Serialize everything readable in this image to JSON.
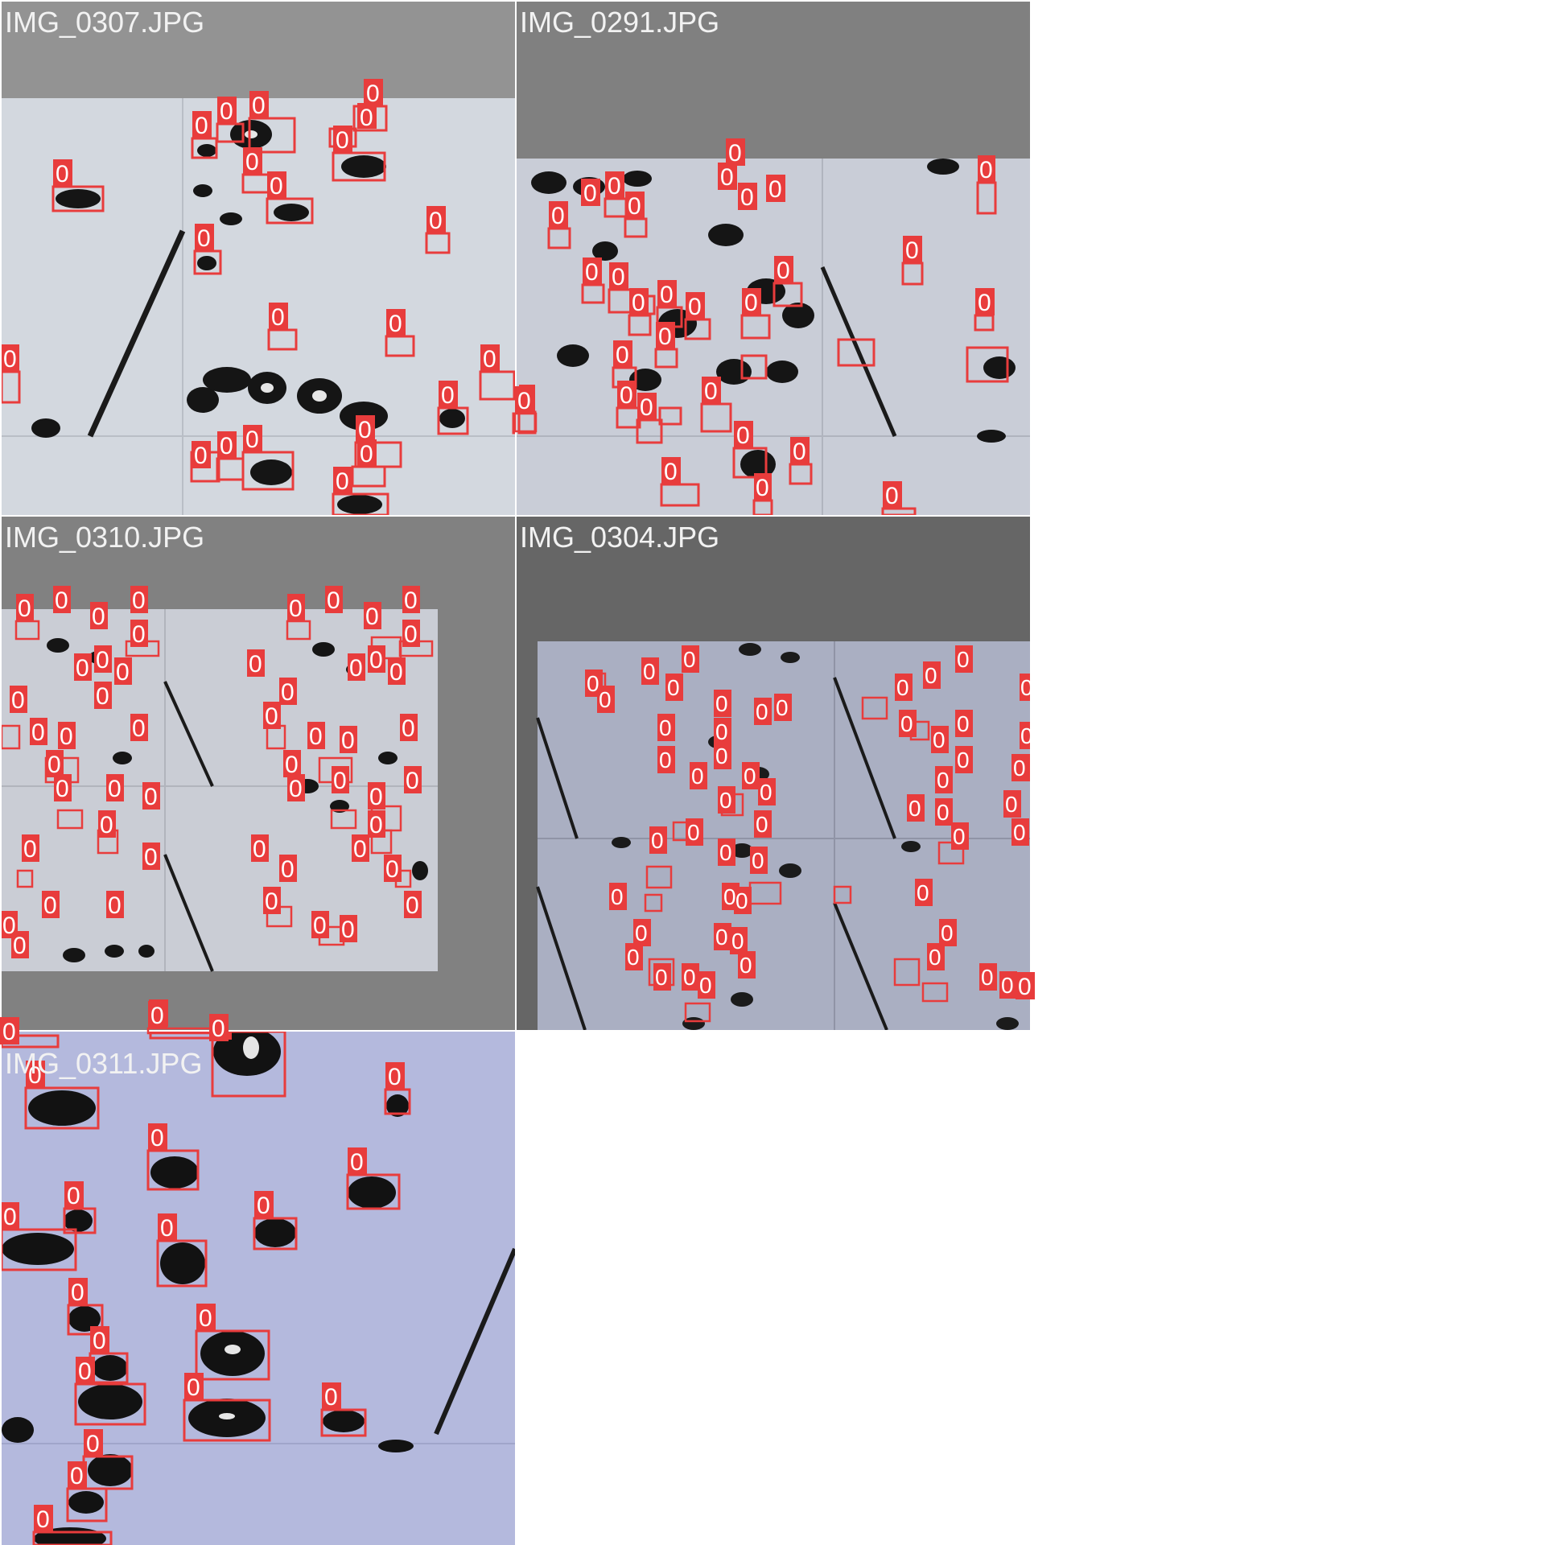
{
  "grid": {
    "background": "#ffffff",
    "tiles": [
      {
        "filename": "IMG_0307.JPG",
        "pad_color": "#939393",
        "photo_color": "#d2d7de",
        "box_color": "#e83c3c",
        "box_label": "0",
        "annotation_count": 33
      },
      {
        "filename": "IMG_0291.JPG",
        "pad_color": "#808080",
        "photo_color": "#c8ccd6",
        "box_color": "#e83c3c",
        "box_label": "0",
        "annotation_count": 68
      },
      {
        "filename": "IMG_0310.JPG",
        "pad_color": "#818181",
        "photo_color": "#c9ccd4",
        "box_color": "#e83c3c",
        "box_label": "0",
        "annotation_count": 92
      },
      {
        "filename": "IMG_0304.JPG",
        "pad_color": "#666666",
        "photo_color": "#a9aec2",
        "box_color": "#e83c3c",
        "box_label": "0",
        "annotation_count": 75
      },
      {
        "filename": "IMG_0311.JPG",
        "pad_color": "#b3b8dc",
        "photo_color": "#b3b8dc",
        "box_color": "#e83c3c",
        "box_label": "0",
        "annotation_count": 24
      }
    ]
  }
}
